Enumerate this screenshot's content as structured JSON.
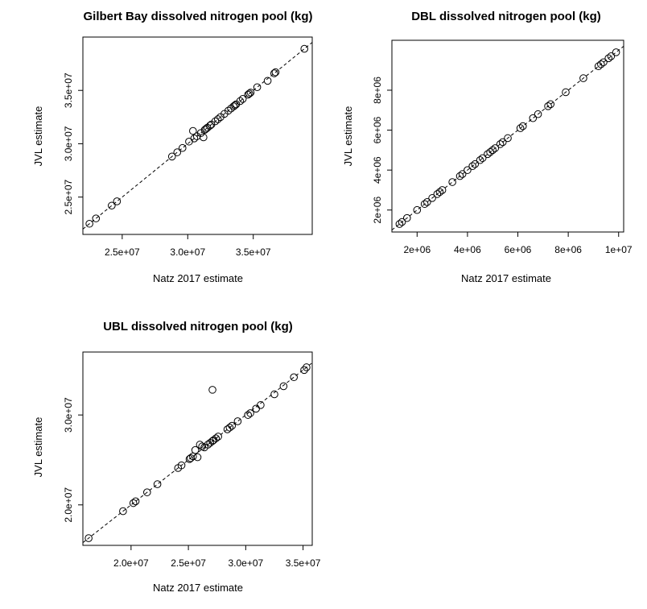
{
  "chart_data": [
    {
      "type": "scatter",
      "title": "Gilbert Bay dissolved nitrogen pool (kg)",
      "xlabel": "Natz 2017 estimate",
      "ylabel": "JVL estimate",
      "xlim": [
        22000000,
        39500000
      ],
      "ylim": [
        21500000,
        40000000
      ],
      "xticks": [
        {
          "v": 25000000,
          "label": "2.5e+07"
        },
        {
          "v": 30000000,
          "label": "3.0e+07"
        },
        {
          "v": 35000000,
          "label": "3.5e+07"
        }
      ],
      "yticks": [
        {
          "v": 25000000,
          "label": "2.5e+07"
        },
        {
          "v": 30000000,
          "label": "3.0e+07"
        },
        {
          "v": 35000000,
          "label": "3.5e+07"
        }
      ],
      "reference_line": "y = x (dashed)",
      "x": [
        22500000,
        23000000,
        24200000,
        24600000,
        28800000,
        29200000,
        29600000,
        30100000,
        30400000,
        30500000,
        30700000,
        31000000,
        31200000,
        31300000,
        31400000,
        31500000,
        31700000,
        31800000,
        32100000,
        32300000,
        32500000,
        32800000,
        33100000,
        33300000,
        33500000,
        33600000,
        33700000,
        34000000,
        34200000,
        34600000,
        34700000,
        34800000,
        35300000,
        36100000,
        36600000,
        36700000,
        38900000
      ],
      "y": [
        22500000,
        23000000,
        24200000,
        24600000,
        28800000,
        29200000,
        29600000,
        30200000,
        31200000,
        30500000,
        30700000,
        31000000,
        30600000,
        31300000,
        31400000,
        31500000,
        31700000,
        31800000,
        32100000,
        32300000,
        32500000,
        32800000,
        33100000,
        33300000,
        33500000,
        33600000,
        33700000,
        34000000,
        34200000,
        34600000,
        34700000,
        34800000,
        35300000,
        35900000,
        36600000,
        36700000,
        38900000
      ]
    },
    {
      "type": "scatter",
      "title": "DBL dissolved nitrogen pool (kg)",
      "xlabel": "Natz 2017 estimate",
      "ylabel": "JVL estimate",
      "xlim": [
        1000000,
        10200000
      ],
      "ylim": [
        900000,
        10500000
      ],
      "xticks": [
        {
          "v": 2000000,
          "label": "2e+06"
        },
        {
          "v": 4000000,
          "label": "4e+06"
        },
        {
          "v": 6000000,
          "label": "6e+06"
        },
        {
          "v": 8000000,
          "label": "8e+06"
        },
        {
          "v": 10000000,
          "label": "1e+07"
        }
      ],
      "yticks": [
        {
          "v": 2000000,
          "label": "2e+06"
        },
        {
          "v": 4000000,
          "label": "4e+06"
        },
        {
          "v": 6000000,
          "label": "6e+06"
        },
        {
          "v": 8000000,
          "label": "8e+06"
        }
      ],
      "reference_line": "y = x (dashed)",
      "x": [
        1300000,
        1400000,
        1600000,
        2000000,
        2300000,
        2400000,
        2600000,
        2800000,
        2900000,
        3000000,
        3400000,
        3700000,
        3800000,
        4000000,
        4200000,
        4300000,
        4500000,
        4600000,
        4800000,
        4900000,
        5000000,
        5100000,
        5300000,
        5400000,
        5600000,
        6100000,
        6200000,
        6600000,
        6800000,
        7200000,
        7300000,
        7900000,
        8600000,
        9200000,
        9300000,
        9400000,
        9600000,
        9700000,
        9900000
      ],
      "y": [
        1300000,
        1400000,
        1600000,
        2000000,
        2300000,
        2400000,
        2600000,
        2800000,
        2900000,
        3000000,
        3400000,
        3700000,
        3800000,
        4000000,
        4200000,
        4300000,
        4500000,
        4600000,
        4800000,
        4900000,
        5000000,
        5100000,
        5300000,
        5400000,
        5600000,
        6100000,
        6200000,
        6600000,
        6800000,
        7200000,
        7300000,
        7900000,
        8600000,
        9200000,
        9300000,
        9400000,
        9600000,
        9700000,
        9900000
      ]
    },
    {
      "type": "scatter",
      "title": "UBL dissolved nitrogen pool (kg)",
      "xlabel": "Natz 2017 estimate",
      "ylabel": "JVL estimate",
      "xlim": [
        15800000,
        35800000
      ],
      "ylim": [
        15500000,
        37000000
      ],
      "xticks": [
        {
          "v": 20000000,
          "label": "2.0e+07"
        },
        {
          "v": 25000000,
          "label": "2.5e+07"
        },
        {
          "v": 30000000,
          "label": "3.0e+07"
        },
        {
          "v": 35000000,
          "label": "3.5e+07"
        }
      ],
      "yticks": [
        {
          "v": 20000000,
          "label": "2.0e+07"
        },
        {
          "v": 30000000,
          "label": "3.0e+07"
        }
      ],
      "reference_line": "y = x (dashed)",
      "x": [
        16300000,
        19300000,
        20200000,
        20400000,
        21400000,
        22300000,
        24100000,
        24400000,
        25100000,
        25200000,
        25400000,
        25600000,
        25800000,
        26000000,
        26200000,
        26400000,
        26700000,
        26900000,
        27100000,
        27200000,
        27400000,
        27600000,
        27100000,
        28400000,
        28600000,
        28800000,
        29300000,
        30200000,
        30400000,
        30900000,
        31300000,
        32500000,
        33300000,
        34200000,
        35100000,
        35300000
      ],
      "y": [
        16300000,
        19300000,
        20200000,
        20400000,
        21400000,
        22300000,
        24100000,
        24400000,
        25100000,
        25200000,
        25400000,
        26100000,
        25300000,
        26700000,
        26500000,
        26400000,
        26700000,
        26900000,
        27100000,
        27200000,
        27400000,
        27600000,
        32800000,
        28400000,
        28600000,
        28800000,
        29300000,
        30000000,
        30200000,
        30700000,
        31100000,
        32300000,
        33200000,
        34200000,
        35000000,
        35300000
      ]
    }
  ]
}
